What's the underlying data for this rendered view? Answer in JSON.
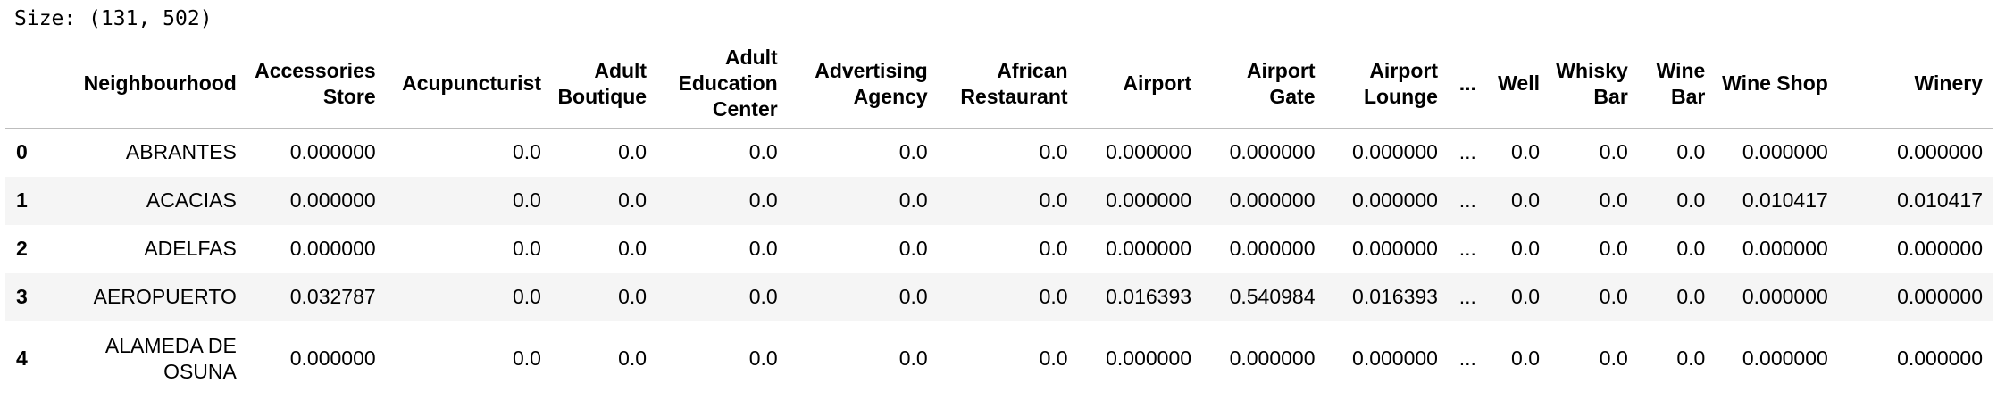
{
  "size_label": "Size: (131, 502)",
  "table": {
    "index_header": "",
    "columns": [
      "Neighbourhood",
      "Accessories Store",
      "Acupuncturist",
      "Adult Boutique",
      "Adult Education Center",
      "Advertising Agency",
      "African Restaurant",
      "Airport",
      "Airport Gate",
      "Airport Lounge",
      "...",
      "Well",
      "Whisky Bar",
      "Wine Bar",
      "Wine Shop",
      "Winery"
    ],
    "rows": [
      {
        "index": "0",
        "cells": [
          "ABRANTES",
          "0.000000",
          "0.0",
          "0.0",
          "0.0",
          "0.0",
          "0.0",
          "0.000000",
          "0.000000",
          "0.000000",
          "...",
          "0.0",
          "0.0",
          "0.0",
          "0.000000",
          "0.000000"
        ]
      },
      {
        "index": "1",
        "cells": [
          "ACACIAS",
          "0.000000",
          "0.0",
          "0.0",
          "0.0",
          "0.0",
          "0.0",
          "0.000000",
          "0.000000",
          "0.000000",
          "...",
          "0.0",
          "0.0",
          "0.0",
          "0.010417",
          "0.010417"
        ]
      },
      {
        "index": "2",
        "cells": [
          "ADELFAS",
          "0.000000",
          "0.0",
          "0.0",
          "0.0",
          "0.0",
          "0.0",
          "0.000000",
          "0.000000",
          "0.000000",
          "...",
          "0.0",
          "0.0",
          "0.0",
          "0.000000",
          "0.000000"
        ]
      },
      {
        "index": "3",
        "cells": [
          "AEROPUERTO",
          "0.032787",
          "0.0",
          "0.0",
          "0.0",
          "0.0",
          "0.0",
          "0.016393",
          "0.540984",
          "0.016393",
          "...",
          "0.0",
          "0.0",
          "0.0",
          "0.000000",
          "0.000000"
        ]
      },
      {
        "index": "4",
        "cells": [
          "ALAMEDA DE OSUNA",
          "0.000000",
          "0.0",
          "0.0",
          "0.0",
          "0.0",
          "0.0",
          "0.000000",
          "0.000000",
          "0.000000",
          "...",
          "0.0",
          "0.0",
          "0.0",
          "0.000000",
          "0.000000"
        ]
      }
    ]
  },
  "colors": {
    "background": "#ffffff",
    "stripe": "#f5f5f5",
    "header_rule": "#bdbdbd",
    "text": "#000000"
  }
}
